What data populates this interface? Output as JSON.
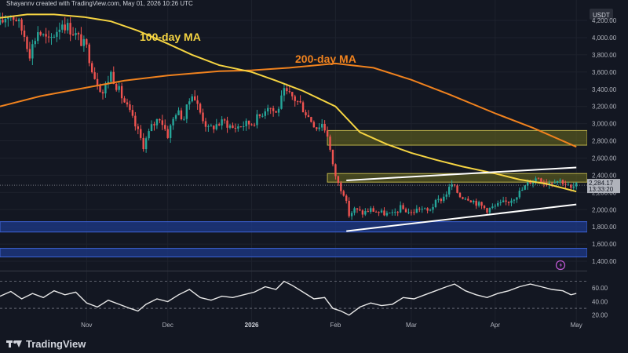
{
  "header": {
    "byline": "Shayannv created with TradingView.com, May 01, 2026 10:26 UTC"
  },
  "footer": {
    "brand": "TradingView",
    "logo_icon": "tradingview-logo-icon"
  },
  "colors": {
    "background": "#131722",
    "up": "#26a69a",
    "down": "#ef5350",
    "ma100": "#f5d442",
    "ma200": "#f0821e",
    "supply_zone": "#6b6b1e",
    "demand_zone": "#1e3a8a",
    "trendline": "#ffffff",
    "rsi": "#e8e8e8",
    "price_tag": "#b0b3bb"
  },
  "chart_data": {
    "type": "candlestick",
    "title": "",
    "price_unit": "USDT",
    "x_tick_labels": [
      "Nov",
      "Dec",
      "2026",
      "Feb",
      "Mar",
      "Apr",
      "May"
    ],
    "y_tick_labels": [
      "4,200.00",
      "4,000.00",
      "3,800.00",
      "3,600.00",
      "3,400.00",
      "3,200.00",
      "3,000.00",
      "2,800.00",
      "2,600.00",
      "2,400.00",
      "2,200.00",
      "2,000.00",
      "1,800.00",
      "1,600.00",
      "1,400.00"
    ],
    "ylim": [
      1300,
      4310
    ],
    "y_ticks": [
      4200,
      4000,
      3800,
      3600,
      3400,
      3200,
      3000,
      2800,
      2600,
      2400,
      2200,
      2000,
      1800,
      1600,
      1400
    ],
    "x_ticks": [
      "2025-11-01",
      "2025-12-01",
      "2026-01-01",
      "2026-02-01",
      "2026-03-01",
      "2026-04-01",
      "2026-05-01"
    ],
    "xlim": [
      "2025-09-30",
      "2026-05-05"
    ],
    "current_price": {
      "value": 2284.17,
      "label": "2,284.17",
      "countdown": "13:33:20"
    },
    "ohlc_path": [
      [
        "2025-09-30",
        4150
      ],
      [
        "2025-10-03",
        4280
      ],
      [
        "2025-10-06",
        4220
      ],
      [
        "2025-10-09",
        4030
      ],
      [
        "2025-10-11",
        3820
      ],
      [
        "2025-10-14",
        4080
      ],
      [
        "2025-10-18",
        3950
      ],
      [
        "2025-10-23",
        4180
      ],
      [
        "2025-10-27",
        4070
      ],
      [
        "2025-11-01",
        3880
      ],
      [
        "2025-11-04",
        3550
      ],
      [
        "2025-11-07",
        3360
      ],
      [
        "2025-11-10",
        3590
      ],
      [
        "2025-11-13",
        3380
      ],
      [
        "2025-11-17",
        3120
      ],
      [
        "2025-11-20",
        2900
      ],
      [
        "2025-11-22",
        2750
      ],
      [
        "2025-11-25",
        2960
      ],
      [
        "2025-11-28",
        3080
      ],
      [
        "2025-12-01",
        2870
      ],
      [
        "2025-12-04",
        3140
      ],
      [
        "2025-12-07",
        3070
      ],
      [
        "2025-12-10",
        3370
      ],
      [
        "2025-12-13",
        3130
      ],
      [
        "2025-12-16",
        2930
      ],
      [
        "2025-12-19",
        2990
      ],
      [
        "2025-12-22",
        3020
      ],
      [
        "2025-12-25",
        2950
      ],
      [
        "2025-12-28",
        2980
      ],
      [
        "2026-01-01",
        3010
      ],
      [
        "2026-01-04",
        3090
      ],
      [
        "2026-01-07",
        3220
      ],
      [
        "2026-01-10",
        3120
      ],
      [
        "2026-01-13",
        3360
      ],
      [
        "2026-01-16",
        3310
      ],
      [
        "2026-01-19",
        3230
      ],
      [
        "2026-01-22",
        3080
      ],
      [
        "2026-01-25",
        2960
      ],
      [
        "2026-01-27",
        3000
      ],
      [
        "2026-01-29",
        2880
      ],
      [
        "2026-01-31",
        2500
      ],
      [
        "2026-02-02",
        2300
      ],
      [
        "2026-02-04",
        2200
      ],
      [
        "2026-02-06",
        1940
      ],
      [
        "2026-02-08",
        2000
      ],
      [
        "2026-02-11",
        1960
      ],
      [
        "2026-02-14",
        2000
      ],
      [
        "2026-02-18",
        1960
      ],
      [
        "2026-02-22",
        1940
      ],
      [
        "2026-02-25",
        2020
      ],
      [
        "2026-03-01",
        1960
      ],
      [
        "2026-03-04",
        2020
      ],
      [
        "2026-03-07",
        1980
      ],
      [
        "2026-03-10",
        2080
      ],
      [
        "2026-03-13",
        2150
      ],
      [
        "2026-03-16",
        2290
      ],
      [
        "2026-03-19",
        2160
      ],
      [
        "2026-03-22",
        2140
      ],
      [
        "2026-03-26",
        2060
      ],
      [
        "2026-03-29",
        2000
      ],
      [
        "2026-04-02",
        2050
      ],
      [
        "2026-04-06",
        2100
      ],
      [
        "2026-04-10",
        2200
      ],
      [
        "2026-04-14",
        2330
      ],
      [
        "2026-04-17",
        2380
      ],
      [
        "2026-04-20",
        2310
      ],
      [
        "2026-04-23",
        2350
      ],
      [
        "2026-04-26",
        2330
      ],
      [
        "2026-04-29",
        2240
      ],
      [
        "2026-05-01",
        2284
      ]
    ],
    "ma100": {
      "label": "100-day MA",
      "points": [
        [
          "2025-09-30",
          4230
        ],
        [
          "2025-10-10",
          4270
        ],
        [
          "2025-10-20",
          4270
        ],
        [
          "2025-10-31",
          4240
        ],
        [
          "2025-11-10",
          4190
        ],
        [
          "2025-11-20",
          4080
        ],
        [
          "2025-12-01",
          3930
        ],
        [
          "2025-12-10",
          3800
        ],
        [
          "2025-12-20",
          3680
        ],
        [
          "2026-01-01",
          3600
        ],
        [
          "2026-01-10",
          3500
        ],
        [
          "2026-01-20",
          3380
        ],
        [
          "2026-02-01",
          3200
        ],
        [
          "2026-02-10",
          2900
        ],
        [
          "2026-02-20",
          2760
        ],
        [
          "2026-03-01",
          2660
        ],
        [
          "2026-03-10",
          2580
        ],
        [
          "2026-03-20",
          2500
        ],
        [
          "2026-04-01",
          2420
        ],
        [
          "2026-04-10",
          2350
        ],
        [
          "2026-04-20",
          2300
        ],
        [
          "2026-05-01",
          2210
        ]
      ]
    },
    "ma200": {
      "label": "200-day MA",
      "points": [
        [
          "2025-09-30",
          3200
        ],
        [
          "2025-10-15",
          3320
        ],
        [
          "2025-11-01",
          3420
        ],
        [
          "2025-11-15",
          3500
        ],
        [
          "2025-12-01",
          3560
        ],
        [
          "2025-12-20",
          3610
        ],
        [
          "2026-01-01",
          3620
        ],
        [
          "2026-01-15",
          3650
        ],
        [
          "2026-02-01",
          3700
        ],
        [
          "2026-02-15",
          3650
        ],
        [
          "2026-03-01",
          3510
        ],
        [
          "2026-03-15",
          3340
        ],
        [
          "2026-04-01",
          3120
        ],
        [
          "2026-04-15",
          2950
        ],
        [
          "2026-05-01",
          2730
        ]
      ]
    },
    "zones": [
      {
        "name": "supply-zone-upper",
        "from": 2750,
        "to": 2920,
        "color": "#6b6b1e"
      },
      {
        "name": "supply-zone-lower",
        "from": 2320,
        "to": 2420,
        "color": "#6b6b1e"
      },
      {
        "name": "demand-zone-upper",
        "from": 1740,
        "to": 1860,
        "color": "#1e3a8a"
      },
      {
        "name": "demand-zone-lower",
        "from": 1450,
        "to": 1550,
        "color": "#1e3a8a"
      }
    ],
    "trendlines": [
      {
        "name": "upper-channel-trendline",
        "from": [
          "2026-02-05",
          2340
        ],
        "to": [
          "2026-05-01",
          2490
        ]
      },
      {
        "name": "lower-channel-trendline",
        "from": [
          "2026-02-05",
          1750
        ],
        "to": [
          "2026-05-01",
          2060
        ]
      }
    ],
    "rsi": {
      "y_tick_labels": [
        "60.00",
        "40.00",
        "20.00"
      ],
      "ylim": [
        15,
        80
      ],
      "y_ticks": [
        60,
        40,
        20
      ],
      "bands": [
        70,
        30
      ],
      "points": [
        [
          "2025-09-30",
          48
        ],
        [
          "2025-10-04",
          55
        ],
        [
          "2025-10-08",
          44
        ],
        [
          "2025-10-12",
          52
        ],
        [
          "2025-10-16",
          46
        ],
        [
          "2025-10-20",
          56
        ],
        [
          "2025-10-24",
          50
        ],
        [
          "2025-10-28",
          54
        ],
        [
          "2025-11-01",
          38
        ],
        [
          "2025-11-05",
          32
        ],
        [
          "2025-11-09",
          42
        ],
        [
          "2025-11-13",
          36
        ],
        [
          "2025-11-17",
          30
        ],
        [
          "2025-11-20",
          26
        ],
        [
          "2025-11-23",
          36
        ],
        [
          "2025-11-27",
          44
        ],
        [
          "2025-12-01",
          40
        ],
        [
          "2025-12-05",
          50
        ],
        [
          "2025-12-09",
          58
        ],
        [
          "2025-12-13",
          46
        ],
        [
          "2025-12-17",
          42
        ],
        [
          "2025-12-21",
          48
        ],
        [
          "2025-12-25",
          46
        ],
        [
          "2025-12-29",
          50
        ],
        [
          "2026-01-02",
          54
        ],
        [
          "2026-01-06",
          62
        ],
        [
          "2026-01-10",
          58
        ],
        [
          "2026-01-13",
          70
        ],
        [
          "2026-01-16",
          64
        ],
        [
          "2026-01-20",
          54
        ],
        [
          "2026-01-24",
          44
        ],
        [
          "2026-01-28",
          46
        ],
        [
          "2026-01-31",
          30
        ],
        [
          "2026-02-03",
          26
        ],
        [
          "2026-02-06",
          20
        ],
        [
          "2026-02-10",
          32
        ],
        [
          "2026-02-14",
          38
        ],
        [
          "2026-02-18",
          34
        ],
        [
          "2026-02-22",
          36
        ],
        [
          "2026-02-26",
          46
        ],
        [
          "2026-03-02",
          44
        ],
        [
          "2026-03-06",
          50
        ],
        [
          "2026-03-10",
          56
        ],
        [
          "2026-03-14",
          62
        ],
        [
          "2026-03-17",
          66
        ],
        [
          "2026-03-21",
          56
        ],
        [
          "2026-03-25",
          50
        ],
        [
          "2026-03-29",
          46
        ],
        [
          "2026-04-02",
          52
        ],
        [
          "2026-04-06",
          56
        ],
        [
          "2026-04-10",
          62
        ],
        [
          "2026-04-14",
          66
        ],
        [
          "2026-04-18",
          62
        ],
        [
          "2026-04-22",
          58
        ],
        [
          "2026-04-26",
          56
        ],
        [
          "2026-04-29",
          50
        ],
        [
          "2026-05-01",
          52
        ]
      ]
    }
  }
}
